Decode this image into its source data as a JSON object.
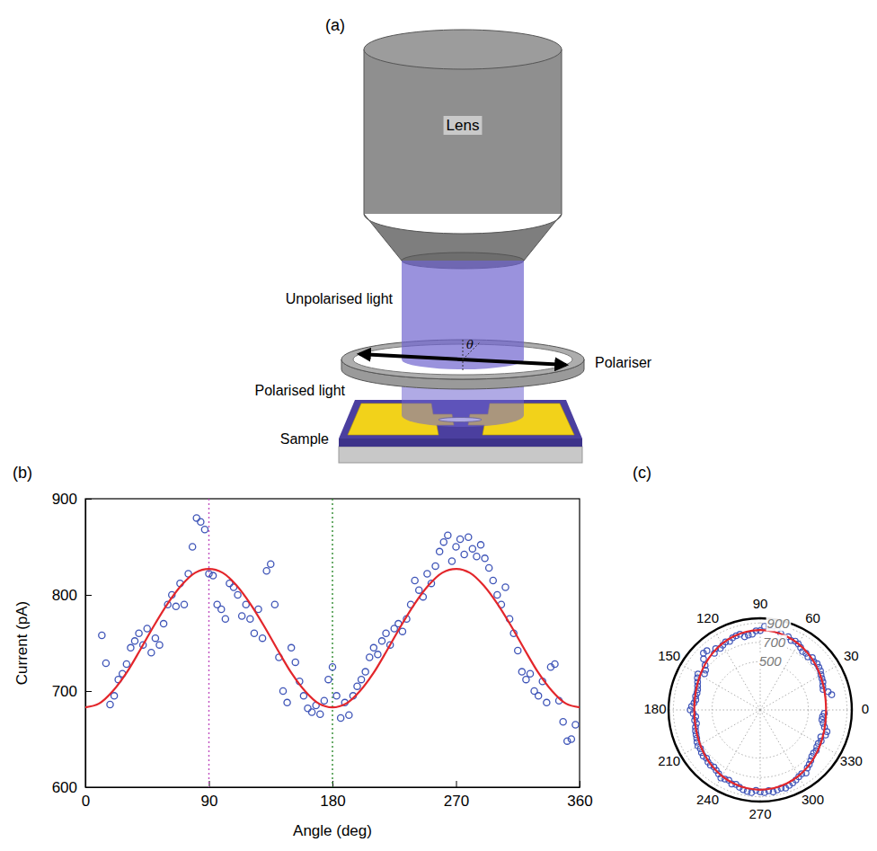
{
  "diagram": {
    "panel": "(a)",
    "lens": "Lens",
    "unpolarised": "Unpolarised light",
    "polariser": "Polariser",
    "polarised": "Polarised light",
    "sample": "Sample",
    "angle": "θ"
  },
  "chart_data": [
    {
      "type": "scatter",
      "panel": "(b)",
      "x_label": "Angle (deg)",
      "y_label": "Current (pA)",
      "xlim": [
        0,
        360
      ],
      "xticks": [
        0,
        90,
        180,
        270,
        360
      ],
      "ylim": [
        600,
        900
      ],
      "yticks": [
        600,
        700,
        800,
        900
      ],
      "grid": false,
      "reference_lines": [
        {
          "x": 90,
          "color": "#c050c0",
          "line_style": "dotted"
        },
        {
          "x": 180,
          "color": "#2e8b2e",
          "line_style": "dotted"
        }
      ],
      "series": [
        {
          "type": "scatter",
          "color": "#3f55b8",
          "marker": "circle",
          "x": [
            12,
            15,
            18,
            21,
            24,
            27,
            30,
            33,
            36,
            39,
            42,
            45,
            48,
            51,
            54,
            57,
            60,
            63,
            66,
            69,
            72,
            75,
            78,
            81,
            84,
            87,
            90,
            93,
            96,
            99,
            102,
            105,
            108,
            111,
            114,
            117,
            120,
            123,
            126,
            129,
            132,
            135,
            138,
            141,
            144,
            147,
            150,
            153,
            156,
            159,
            162,
            165,
            168,
            171,
            174,
            177,
            180,
            183,
            186,
            189,
            192,
            195,
            198,
            201,
            204,
            207,
            210,
            213,
            216,
            219,
            222,
            225,
            228,
            231,
            234,
            237,
            240,
            243,
            246,
            249,
            252,
            255,
            258,
            261,
            264,
            267,
            270,
            273,
            276,
            279,
            282,
            285,
            288,
            291,
            294,
            297,
            300,
            303,
            306,
            309,
            312,
            315,
            318,
            321,
            324,
            327,
            330,
            333,
            336,
            339,
            342,
            345,
            348,
            351,
            354,
            357
          ],
          "values": [
            758,
            729,
            686,
            695,
            712,
            718,
            728,
            745,
            752,
            760,
            748,
            765,
            740,
            755,
            748,
            770,
            790,
            800,
            788,
            812,
            790,
            822,
            850,
            880,
            876,
            868,
            822,
            820,
            790,
            785,
            775,
            812,
            808,
            800,
            778,
            790,
            775,
            760,
            785,
            755,
            825,
            832,
            790,
            735,
            700,
            688,
            745,
            730,
            710,
            695,
            682,
            678,
            685,
            676,
            690,
            712,
            725,
            695,
            672,
            688,
            675,
            695,
            705,
            712,
            720,
            735,
            745,
            738,
            752,
            760,
            748,
            765,
            770,
            762,
            775,
            790,
            815,
            805,
            798,
            822,
            812,
            830,
            845,
            855,
            862,
            835,
            850,
            858,
            842,
            860,
            848,
            840,
            852,
            838,
            828,
            815,
            800,
            790,
            808,
            775,
            760,
            742,
            720,
            712,
            718,
            700,
            695,
            710,
            688,
            725,
            728,
            690,
            668,
            648,
            650,
            665
          ]
        },
        {
          "type": "line",
          "color": "#e3262b",
          "line_style": "solid",
          "x": [
            0,
            10,
            20,
            30,
            40,
            50,
            60,
            70,
            80,
            90,
            100,
            110,
            120,
            130,
            140,
            150,
            160,
            170,
            180,
            190,
            200,
            210,
            220,
            230,
            240,
            250,
            260,
            270,
            280,
            290,
            300,
            310,
            320,
            330,
            340,
            350,
            360
          ],
          "values": [
            683,
            687,
            700,
            719,
            743,
            768,
            791,
            810,
            823,
            827,
            823,
            810,
            791,
            768,
            743,
            719,
            700,
            687,
            683,
            687,
            700,
            719,
            743,
            768,
            791,
            810,
            823,
            827,
            823,
            810,
            791,
            768,
            743,
            719,
            700,
            687,
            683
          ]
        }
      ]
    },
    {
      "type": "polar",
      "panel": "(c)",
      "angle_lim": [
        0,
        360
      ],
      "angle_ticks": [
        0,
        30,
        60,
        90,
        120,
        150,
        180,
        210,
        240,
        270,
        300,
        330
      ],
      "rlim": [
        0,
        950
      ],
      "rticks": [
        500,
        700,
        900
      ],
      "grid": true,
      "series": [
        {
          "type": "scatter",
          "color": "#3f55b8",
          "marker": "circle",
          "x": [
            12,
            15,
            18,
            21,
            24,
            27,
            30,
            33,
            36,
            39,
            42,
            45,
            48,
            51,
            54,
            57,
            60,
            63,
            66,
            69,
            72,
            75,
            78,
            81,
            84,
            87,
            90,
            93,
            96,
            99,
            102,
            105,
            108,
            111,
            114,
            117,
            120,
            123,
            126,
            129,
            132,
            135,
            138,
            141,
            144,
            147,
            150,
            153,
            156,
            159,
            162,
            165,
            168,
            171,
            174,
            177,
            180,
            183,
            186,
            189,
            192,
            195,
            198,
            201,
            204,
            207,
            210,
            213,
            216,
            219,
            222,
            225,
            228,
            231,
            234,
            237,
            240,
            243,
            246,
            249,
            252,
            255,
            258,
            261,
            264,
            267,
            270,
            273,
            276,
            279,
            282,
            285,
            288,
            291,
            294,
            297,
            300,
            303,
            306,
            309,
            312,
            315,
            318,
            321,
            324,
            327,
            330,
            333,
            336,
            339,
            342,
            345,
            348,
            351,
            354,
            357
          ],
          "values": [
            758,
            729,
            686,
            695,
            712,
            718,
            728,
            745,
            752,
            760,
            748,
            765,
            740,
            755,
            748,
            770,
            790,
            800,
            788,
            812,
            790,
            822,
            850,
            880,
            876,
            868,
            822,
            820,
            790,
            785,
            775,
            812,
            808,
            800,
            778,
            790,
            775,
            760,
            785,
            755,
            825,
            832,
            790,
            735,
            700,
            688,
            745,
            730,
            710,
            695,
            682,
            678,
            685,
            676,
            690,
            712,
            725,
            695,
            672,
            688,
            675,
            695,
            705,
            712,
            720,
            735,
            745,
            738,
            752,
            760,
            748,
            765,
            770,
            762,
            775,
            790,
            815,
            805,
            798,
            822,
            812,
            830,
            845,
            855,
            862,
            835,
            850,
            858,
            842,
            860,
            848,
            840,
            852,
            838,
            828,
            815,
            800,
            790,
            808,
            775,
            760,
            742,
            720,
            712,
            718,
            700,
            695,
            710,
            688,
            725,
            728,
            690,
            668,
            648,
            650,
            665
          ]
        },
        {
          "type": "line",
          "color": "#e3262b",
          "line_style": "solid",
          "x": [
            0,
            10,
            20,
            30,
            40,
            50,
            60,
            70,
            80,
            90,
            100,
            110,
            120,
            130,
            140,
            150,
            160,
            170,
            180,
            190,
            200,
            210,
            220,
            230,
            240,
            250,
            260,
            270,
            280,
            290,
            300,
            310,
            320,
            330,
            340,
            350,
            360
          ],
          "values": [
            683,
            687,
            700,
            719,
            743,
            768,
            791,
            810,
            823,
            827,
            823,
            810,
            791,
            768,
            743,
            719,
            700,
            687,
            683,
            687,
            700,
            719,
            743,
            768,
            791,
            810,
            823,
            827,
            823,
            810,
            791,
            768,
            743,
            719,
            700,
            687,
            683
          ]
        }
      ]
    }
  ]
}
